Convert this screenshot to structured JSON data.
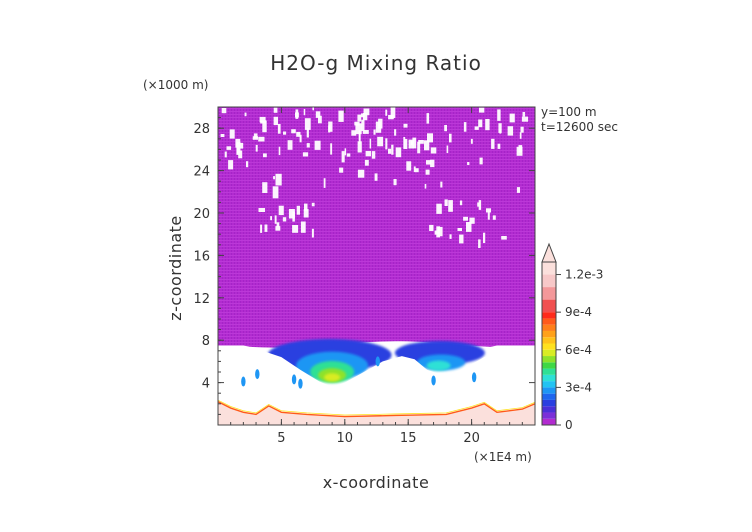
{
  "chart_data": {
    "type": "heatmap",
    "title": "H2O-g Mixing Ratio",
    "xlabel": "x-coordinate",
    "ylabel": "z-coordinate",
    "x_unit": "(×1E4 m)",
    "y_unit": "(×1000 m)",
    "xlim": [
      0,
      25
    ],
    "ylim": [
      0,
      30
    ],
    "x_ticks": [
      5,
      10,
      15,
      20
    ],
    "y_ticks": [
      4,
      8,
      12,
      16,
      20,
      24,
      28
    ],
    "annotations": [
      "y=100 m",
      "t=12600 sec"
    ],
    "colorbar": {
      "range": [
        0,
        0.0013
      ],
      "tick_values": [
        0,
        0.0003,
        0.0006,
        0.0009,
        0.0012
      ],
      "tick_labels": [
        "0",
        "3e-4",
        "6e-4",
        "9e-4",
        "1.2e-3"
      ],
      "levels": [
        {
          "value": 5e-05,
          "color": "#b22bd0"
        },
        {
          "value": 0.0001,
          "color": "#7b2fd8"
        },
        {
          "value": 0.00015,
          "color": "#4a2fd8"
        },
        {
          "value": 0.0002,
          "color": "#2a3fe0"
        },
        {
          "value": 0.00025,
          "color": "#1f66ee"
        },
        {
          "value": 0.0003,
          "color": "#1e96f4"
        },
        {
          "value": 0.00035,
          "color": "#22c3f2"
        },
        {
          "value": 0.0004,
          "color": "#2ee0d6"
        },
        {
          "value": 0.00045,
          "color": "#2fe095"
        },
        {
          "value": 0.0005,
          "color": "#3fd845"
        },
        {
          "value": 0.00055,
          "color": "#8ee22a"
        },
        {
          "value": 0.0006,
          "color": "#d8ec24"
        },
        {
          "value": 0.00065,
          "color": "#ffe11e"
        },
        {
          "value": 0.0007,
          "color": "#ffc21a"
        },
        {
          "value": 0.00075,
          "color": "#ffa11a"
        },
        {
          "value": 0.0008,
          "color": "#ff7f1a"
        },
        {
          "value": 0.00085,
          "color": "#ff5a1a"
        },
        {
          "value": 0.0009,
          "color": "#ff2a1a"
        },
        {
          "value": 0.001,
          "color": "#f05050"
        },
        {
          "value": 0.0011,
          "color": "#f3989a"
        },
        {
          "value": 0.0012,
          "color": "#f7c8c8"
        },
        {
          "value": 0.0013,
          "color": "#fbe0dc"
        }
      ],
      "low_color": "#ffffff",
      "high_triangle_color": "#fbe0dc"
    },
    "fields": {
      "upper_purple_region": {
        "x": [
          0,
          25
        ],
        "z_bottom": 7.5,
        "z_top": 30,
        "value_range": [
          2e-05,
          6e-05
        ]
      },
      "moist_layer": [
        {
          "x_center": 9,
          "z_center": 5.0,
          "value": 0.0006
        },
        {
          "x_center": 17.5,
          "z_center": 5.8,
          "value": 0.0004
        }
      ],
      "surface_layer": {
        "z_top": 1.5,
        "value_range": [
          0.0009,
          0.0013
        ]
      }
    }
  }
}
